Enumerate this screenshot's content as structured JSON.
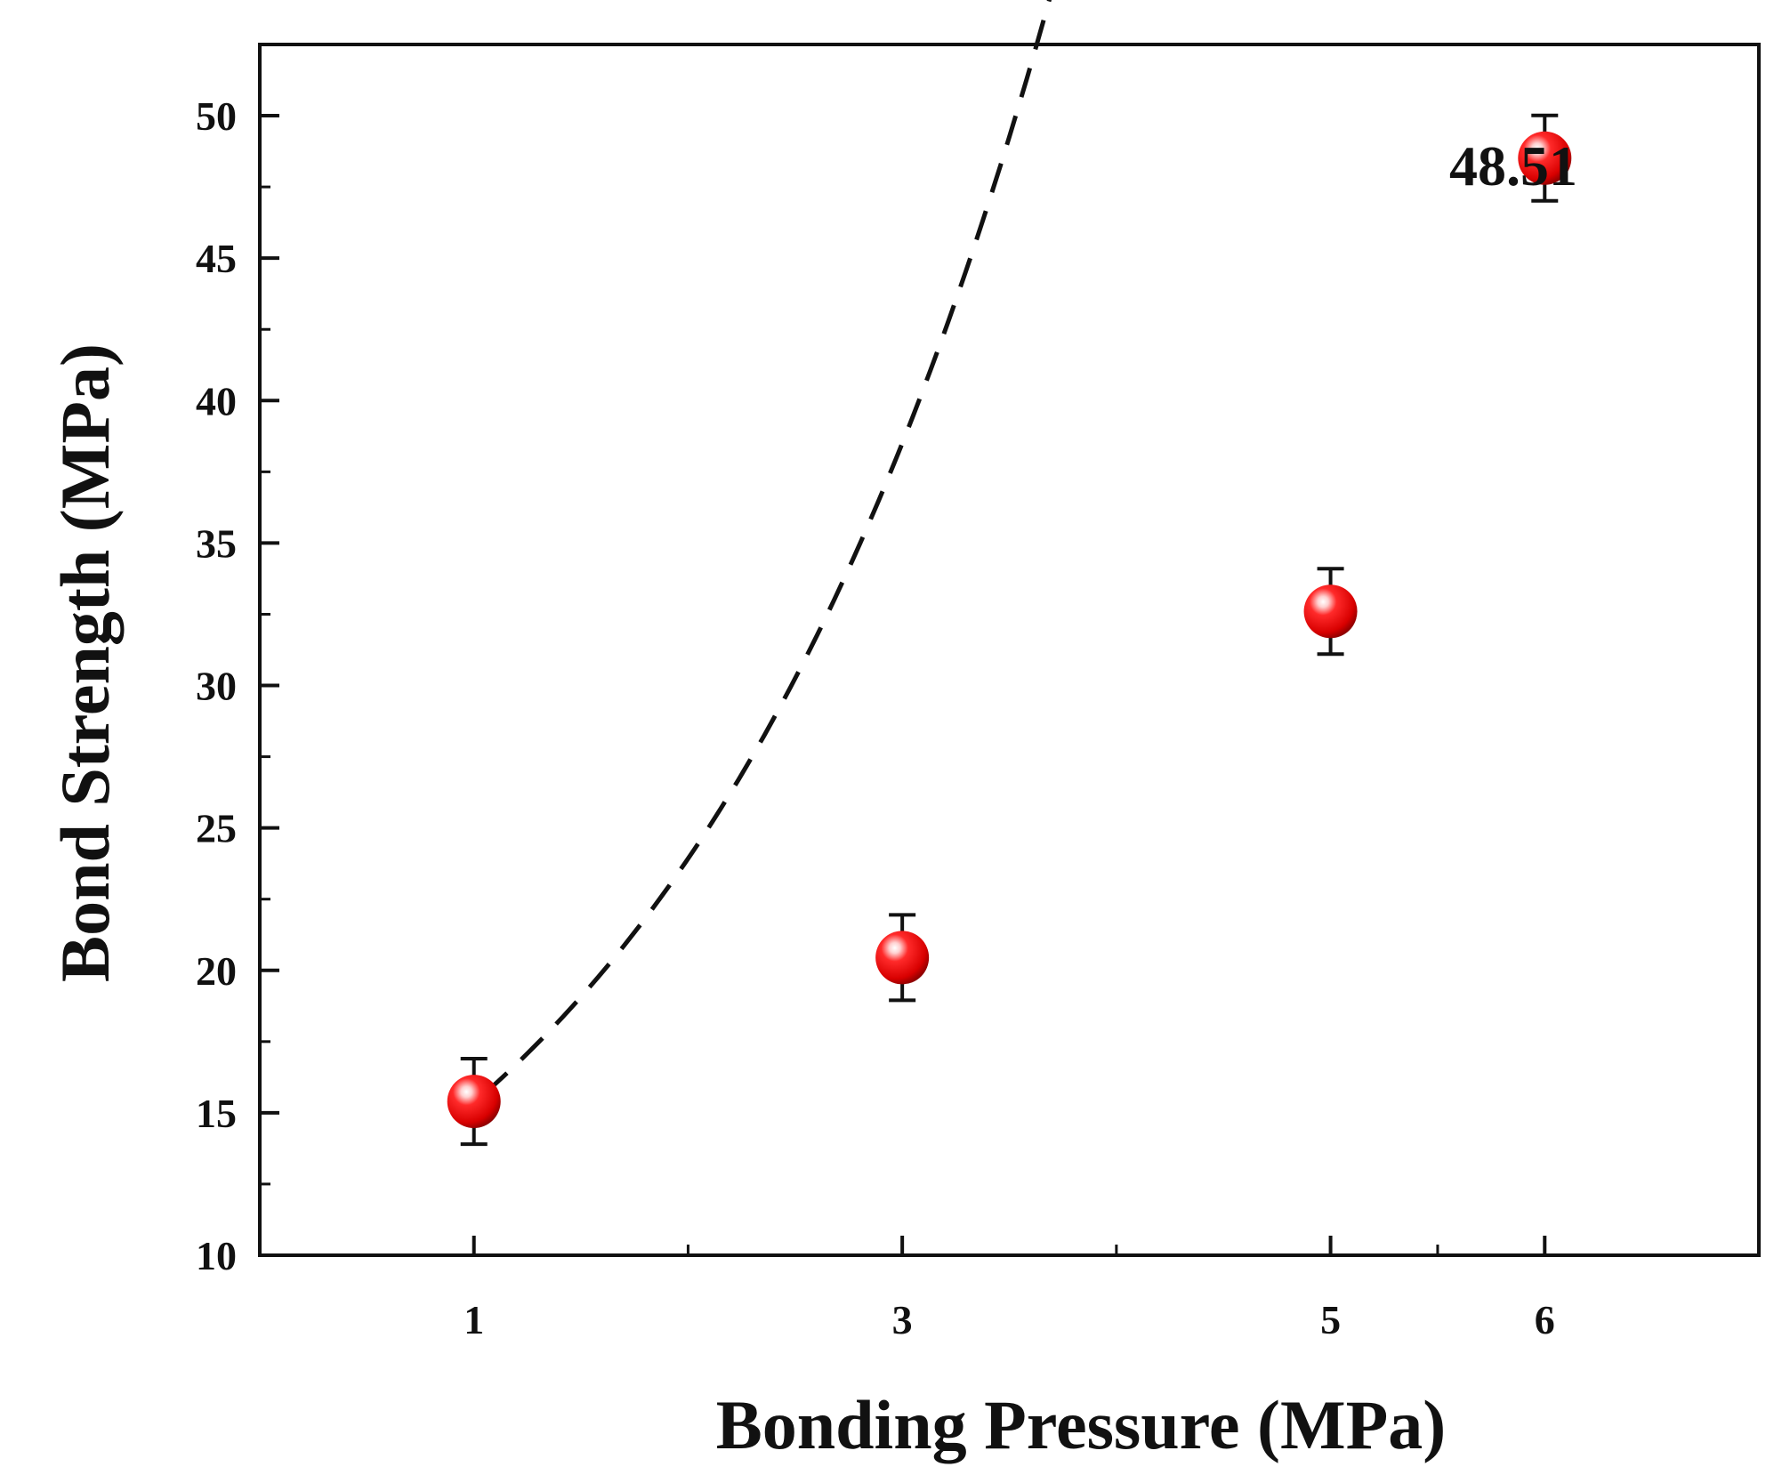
{
  "chart_data": {
    "type": "scatter",
    "title": "",
    "xlabel": "Bonding Pressure (MPa)",
    "ylabel": "Bond Strength (MPa)",
    "xlim": [
      0,
      7
    ],
    "ylim": [
      10,
      52.5
    ],
    "xticks": [
      1,
      3,
      5,
      6
    ],
    "xminor_ticks": [
      2,
      4,
      5.5
    ],
    "yticks": [
      10,
      15,
      20,
      25,
      30,
      35,
      40,
      45,
      50
    ],
    "series": [
      {
        "name": "Bond Strength",
        "x": [
          1,
          3,
          5,
          6
        ],
        "y": [
          15.4,
          20.45,
          32.6,
          48.51
        ],
        "yerr": [
          1.5,
          1.5,
          1.5,
          1.5
        ],
        "color": "#e00000"
      }
    ],
    "fit": {
      "style": "dashed",
      "color": "#111111",
      "x_range": [
        1.05,
        5.95
      ],
      "model": {
        "a": 12.25,
        "b": 0.5306,
        "c": 0.2
      }
    },
    "annotations": [
      {
        "text": "48.51",
        "x": 6,
        "y": 48.51
      }
    ],
    "grid": false,
    "legend": "none"
  }
}
